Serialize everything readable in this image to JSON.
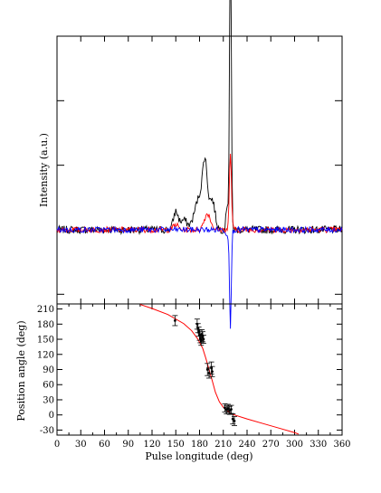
{
  "chart_data": [
    {
      "type": "line",
      "ylabel": "Intensity (a.u.)",
      "xlim": [
        0,
        360
      ],
      "ylim": [
        -1.15,
        3.0
      ],
      "yticks": [
        -1,
        0,
        1,
        2,
        3
      ],
      "series": [
        {
          "color": "#000000",
          "description": "total intensity",
          "features": [
            {
              "x": 150,
              "y": 0.28,
              "w": 3.0
            },
            {
              "x": 160,
              "y": 0.15,
              "w": 4.0
            },
            {
              "x": 187,
              "y": 0.85,
              "w": 3.0
            },
            {
              "x": 180,
              "y": 0.5,
              "w": 6.0
            },
            {
              "x": 196,
              "y": 0.45,
              "w": 3.5
            },
            {
              "x": 219,
              "y": 4.7,
              "w": 1.1
            },
            {
              "x": 215,
              "y": 0.4,
              "w": 1.5
            }
          ]
        },
        {
          "color": "#ff0000",
          "description": "linear polarization",
          "features": [
            {
              "x": 190,
              "y": 0.25,
              "w": 4.0
            },
            {
              "x": 219,
              "y": 1.2,
              "w": 1.3
            },
            {
              "x": 150,
              "y": 0.08,
              "w": 3.0
            }
          ]
        },
        {
          "color": "#0000ff",
          "description": "circular polarization",
          "features": [
            {
              "x": 219,
              "y": -1.5,
              "w": 1.1
            },
            {
              "x": 215,
              "y": -0.1,
              "w": 1.5
            }
          ]
        }
      ]
    },
    {
      "type": "scatter",
      "xlabel": "Pulse longitude (deg)",
      "ylabel": "Position angle (deg)",
      "xlim": [
        0,
        360
      ],
      "ylim": [
        -40,
        220
      ],
      "xticks": [
        0,
        30,
        60,
        90,
        120,
        150,
        180,
        210,
        240,
        270,
        300,
        330,
        360
      ],
      "yticks": [
        -30,
        0,
        30,
        60,
        90,
        120,
        150,
        180,
        210
      ],
      "points": [
        {
          "x": 149,
          "y": 187,
          "err": 10
        },
        {
          "x": 177,
          "y": 180,
          "err": 10
        },
        {
          "x": 178,
          "y": 172,
          "err": 9
        },
        {
          "x": 179,
          "y": 165,
          "err": 9
        },
        {
          "x": 180,
          "y": 158,
          "err": 10
        },
        {
          "x": 181,
          "y": 152,
          "err": 9
        },
        {
          "x": 182,
          "y": 148,
          "err": 10
        },
        {
          "x": 183,
          "y": 160,
          "err": 9
        },
        {
          "x": 184,
          "y": 155,
          "err": 10
        },
        {
          "x": 185,
          "y": 150,
          "err": 8
        },
        {
          "x": 190,
          "y": 90,
          "err": 12
        },
        {
          "x": 192,
          "y": 83,
          "err": 10
        },
        {
          "x": 195,
          "y": 93,
          "err": 12
        },
        {
          "x": 196,
          "y": 86,
          "err": 10
        },
        {
          "x": 212,
          "y": 14,
          "err": 8
        },
        {
          "x": 214,
          "y": 10,
          "err": 8
        },
        {
          "x": 216,
          "y": 13,
          "err": 8
        },
        {
          "x": 218,
          "y": 9,
          "err": 8
        },
        {
          "x": 220,
          "y": 11,
          "err": 8
        },
        {
          "x": 222,
          "y": -8,
          "err": 10
        },
        {
          "x": 224,
          "y": -12,
          "err": 9
        }
      ],
      "model_curve": {
        "color": "#ff0000",
        "x": [
          105,
          120,
          140,
          160,
          170,
          178,
          184,
          188,
          192,
          196,
          200,
          205,
          210,
          220,
          240,
          260,
          280,
          300,
          305
        ],
        "y": [
          219,
          211,
          199,
          181,
          167,
          150,
          132,
          112,
          90,
          68,
          45,
          26,
          15,
          2,
          -8,
          -17,
          -26,
          -35,
          -38
        ]
      }
    }
  ]
}
